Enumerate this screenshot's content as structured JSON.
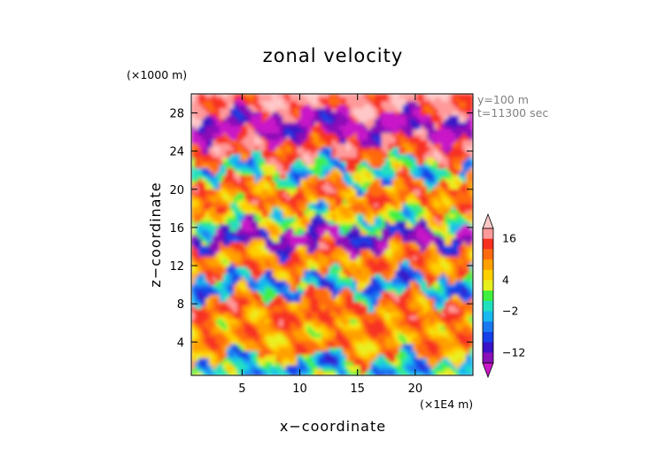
{
  "chart_data": {
    "type": "heatmap",
    "title": "zonal velocity",
    "xlabel": "x−coordinate",
    "ylabel": "z−coordinate",
    "x_unit": "(×1E4 m)",
    "y_unit": "(×1000 m)",
    "x_ticks": [
      "5",
      "10",
      "15",
      "20"
    ],
    "x_tick_values": [
      5,
      10,
      15,
      20
    ],
    "y_ticks": [
      "4",
      "8",
      "12",
      "16",
      "20",
      "24",
      "28"
    ],
    "y_tick_values": [
      4,
      8,
      12,
      16,
      20,
      24,
      28
    ],
    "xlim": [
      0.6,
      25
    ],
    "ylim": [
      0.5,
      30
    ],
    "annotations": [
      "y=100 m",
      "t=11300 sec"
    ],
    "colorbar": {
      "tick_labels": [
        "16",
        "4",
        "−2",
        "−12"
      ],
      "tick_values": [
        16,
        4,
        -2,
        -12
      ],
      "levels": [
        -20,
        -16,
        -12,
        -9,
        -6,
        -4,
        -2,
        0,
        2,
        4,
        6,
        9,
        12,
        16,
        20
      ],
      "colors": [
        "#c818c8",
        "#8a10b8",
        "#3a12c8",
        "#1640e8",
        "#1a78f0",
        "#18b8f0",
        "#20e0c0",
        "#40f040",
        "#e8f020",
        "#ffd000",
        "#ffa000",
        "#ff6a10",
        "#f83020",
        "#ff9a9a",
        "#ffc8c8"
      ]
    },
    "bands": [
      {
        "z": [
          0.5,
          2.5
        ],
        "value": -2
      },
      {
        "z": [
          2.5,
          6.5
        ],
        "value": 8
      },
      {
        "z": [
          6.5,
          9
        ],
        "value": 11
      },
      {
        "z": [
          9,
          11
        ],
        "value": -4
      },
      {
        "z": [
          11,
          14
        ],
        "value": 9
      },
      {
        "z": [
          14,
          16
        ],
        "value": -13
      },
      {
        "z": [
          16,
          18
        ],
        "value": 2
      },
      {
        "z": [
          18,
          21
        ],
        "value": 10
      },
      {
        "z": [
          21,
          23
        ],
        "value": -1
      },
      {
        "z": [
          23,
          25.5
        ],
        "value": 14
      },
      {
        "z": [
          25.5,
          28
        ],
        "value": -15
      },
      {
        "z": [
          28,
          30
        ],
        "value": 17
      }
    ]
  }
}
